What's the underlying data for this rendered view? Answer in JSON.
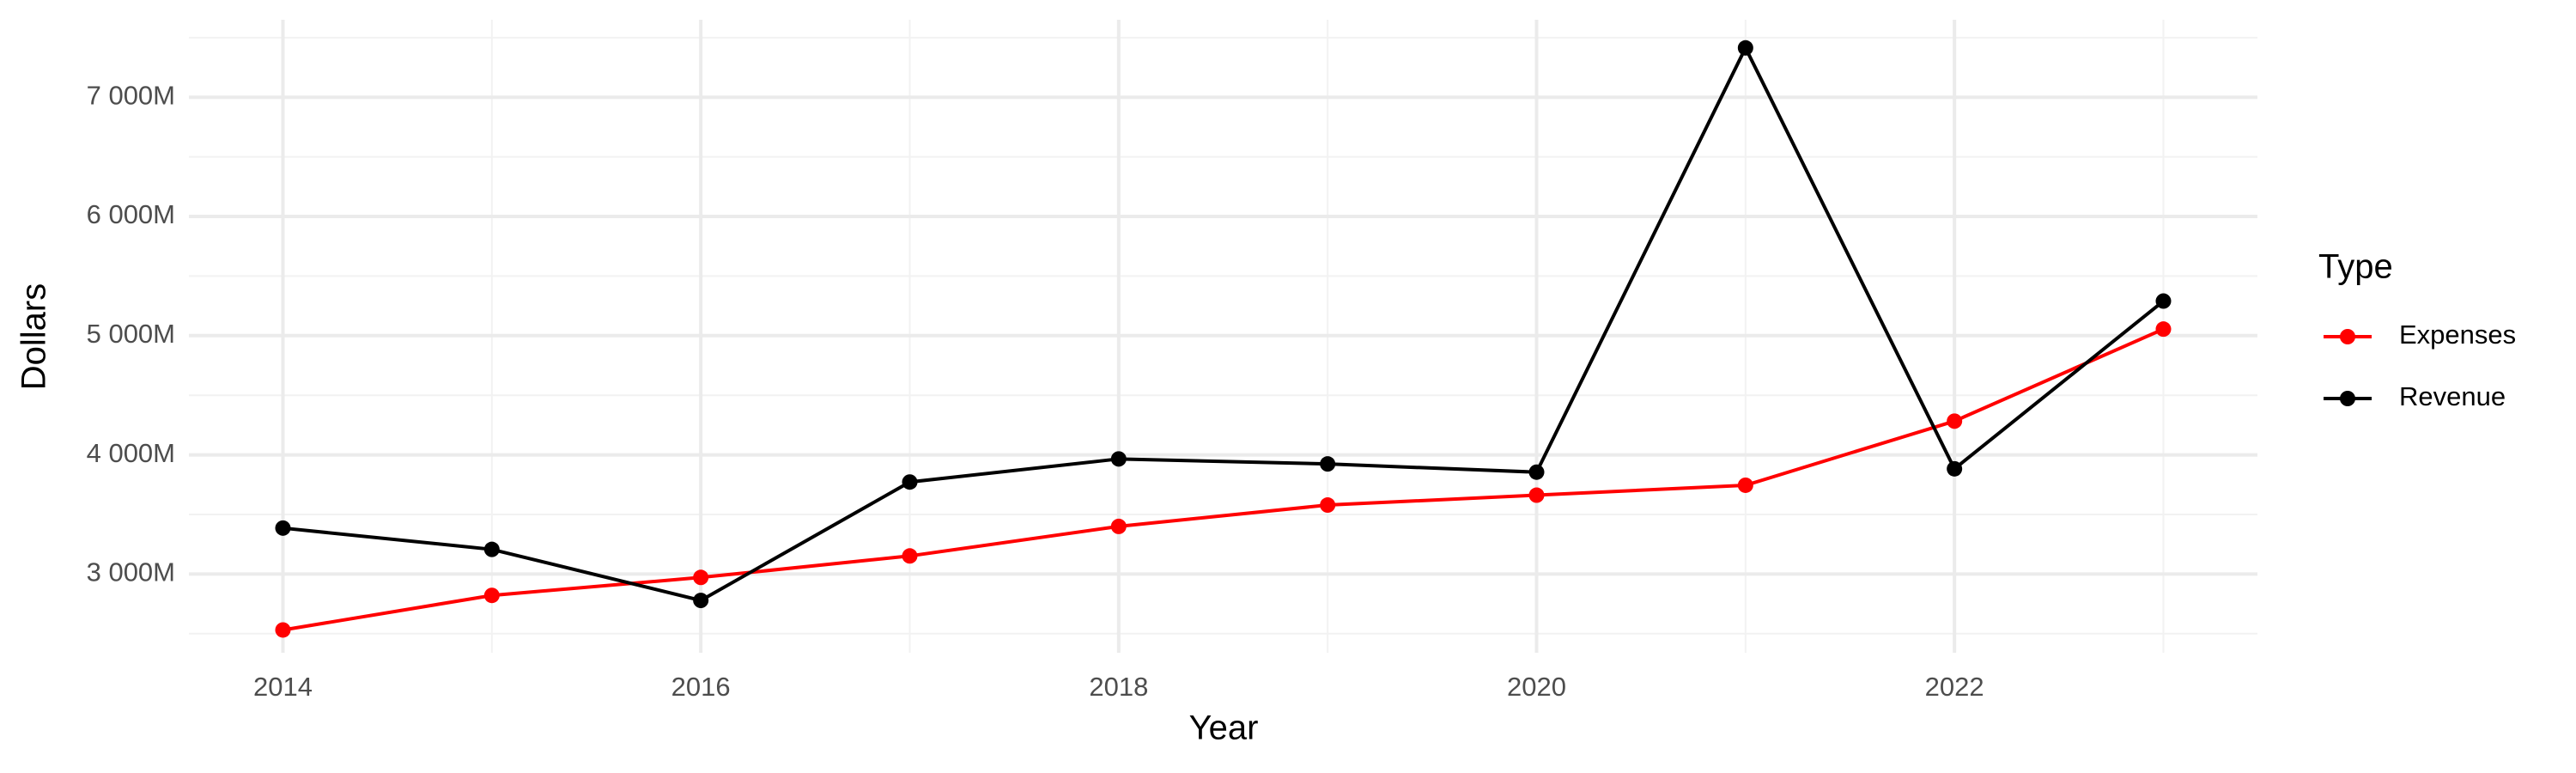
{
  "chart_data": {
    "type": "line",
    "x_label": "Year",
    "y_label": "Dollars",
    "x": [
      2014,
      2015,
      2016,
      2017,
      2018,
      2019,
      2020,
      2021,
      2022,
      2023
    ],
    "series": [
      {
        "name": "Expenses",
        "color": "#ff0000",
        "values": [
          2531000000,
          2821000000,
          2972000000,
          3152000000,
          3400000000,
          3579000000,
          3662000000,
          3745000000,
          4283000000,
          5055000000
        ]
      },
      {
        "name": "Revenue",
        "color": "#000000",
        "values": [
          3386000000,
          3207000000,
          2779000000,
          3772000000,
          3966000000,
          3924000000,
          3855000000,
          7414000000,
          3883000000,
          5290000000
        ]
      }
    ],
    "xlim": [
      2013.55,
      2023.45
    ],
    "xticks": [
      2014,
      2016,
      2018,
      2020,
      2022
    ],
    "x_minor_ticks": [
      2015,
      2017,
      2019,
      2021,
      2023
    ],
    "ylim": [
      2340000000,
      7650000000
    ],
    "yticks": [
      {
        "value": 3000000000,
        "label": "3 000M"
      },
      {
        "value": 4000000000,
        "label": "4 000M"
      },
      {
        "value": 5000000000,
        "label": "5 000M"
      },
      {
        "value": 6000000000,
        "label": "6 000M"
      },
      {
        "value": 7000000000,
        "label": "7 000M"
      }
    ],
    "y_minor_ticks": [
      2500000000,
      3500000000,
      4500000000,
      5500000000,
      6500000000,
      7500000000
    ],
    "grid": true,
    "legend_title": "Type",
    "legend_position": "right"
  }
}
